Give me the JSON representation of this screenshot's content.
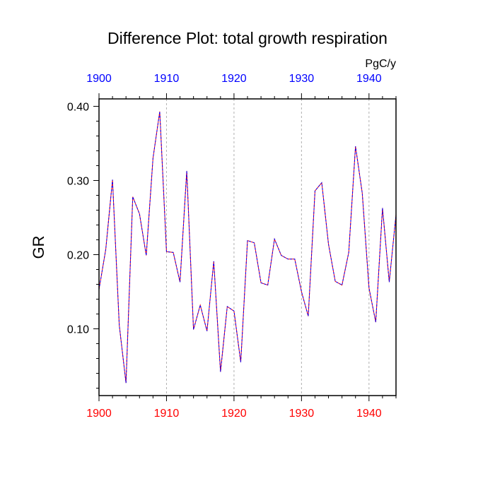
{
  "chart_data": {
    "type": "line",
    "title": "Difference Plot: total growth respiration",
    "units": "PgC/y",
    "ylabel": "GR",
    "xlabel": "",
    "xlim": [
      1900,
      1944
    ],
    "ylim": [
      0.01,
      0.41
    ],
    "x_ticks": [
      1900,
      1910,
      1920,
      1930,
      1940
    ],
    "x_tick_labels": [
      "1900",
      "1910",
      "1920",
      "1930",
      "1940"
    ],
    "y_ticks": [
      0.1,
      0.2,
      0.3,
      0.4
    ],
    "y_tick_labels": [
      "0.10",
      "0.20",
      "0.30",
      "0.40"
    ],
    "grid": "vertical dashed at major x ticks",
    "colors": {
      "bottom_ticks": "#ff0000",
      "top_ticks": "#0000ff",
      "series_a": "#ff0000",
      "series_b": "#0000ff",
      "grid": "#b0b0b0",
      "axes": "#000000"
    },
    "x": [
      1900,
      1901,
      1902,
      1903,
      1904,
      1905,
      1906,
      1907,
      1908,
      1909,
      1910,
      1911,
      1912,
      1913,
      1914,
      1915,
      1916,
      1917,
      1918,
      1919,
      1920,
      1921,
      1922,
      1923,
      1924,
      1925,
      1926,
      1927,
      1928,
      1929,
      1930,
      1931,
      1932,
      1933,
      1934,
      1935,
      1936,
      1937,
      1938,
      1939,
      1940,
      1941,
      1942,
      1943,
      1944
    ],
    "series": [
      {
        "name": "difference",
        "values": [
          0.153,
          0.207,
          0.301,
          0.105,
          0.027,
          0.278,
          0.255,
          0.199,
          0.33,
          0.393,
          0.204,
          0.203,
          0.163,
          0.313,
          0.099,
          0.132,
          0.097,
          0.191,
          0.042,
          0.13,
          0.124,
          0.055,
          0.219,
          0.216,
          0.162,
          0.159,
          0.221,
          0.199,
          0.194,
          0.194,
          0.15,
          0.117,
          0.286,
          0.297,
          0.214,
          0.164,
          0.159,
          0.203,
          0.346,
          0.283,
          0.155,
          0.109,
          0.263,
          0.163,
          0.254
        ]
      }
    ]
  }
}
